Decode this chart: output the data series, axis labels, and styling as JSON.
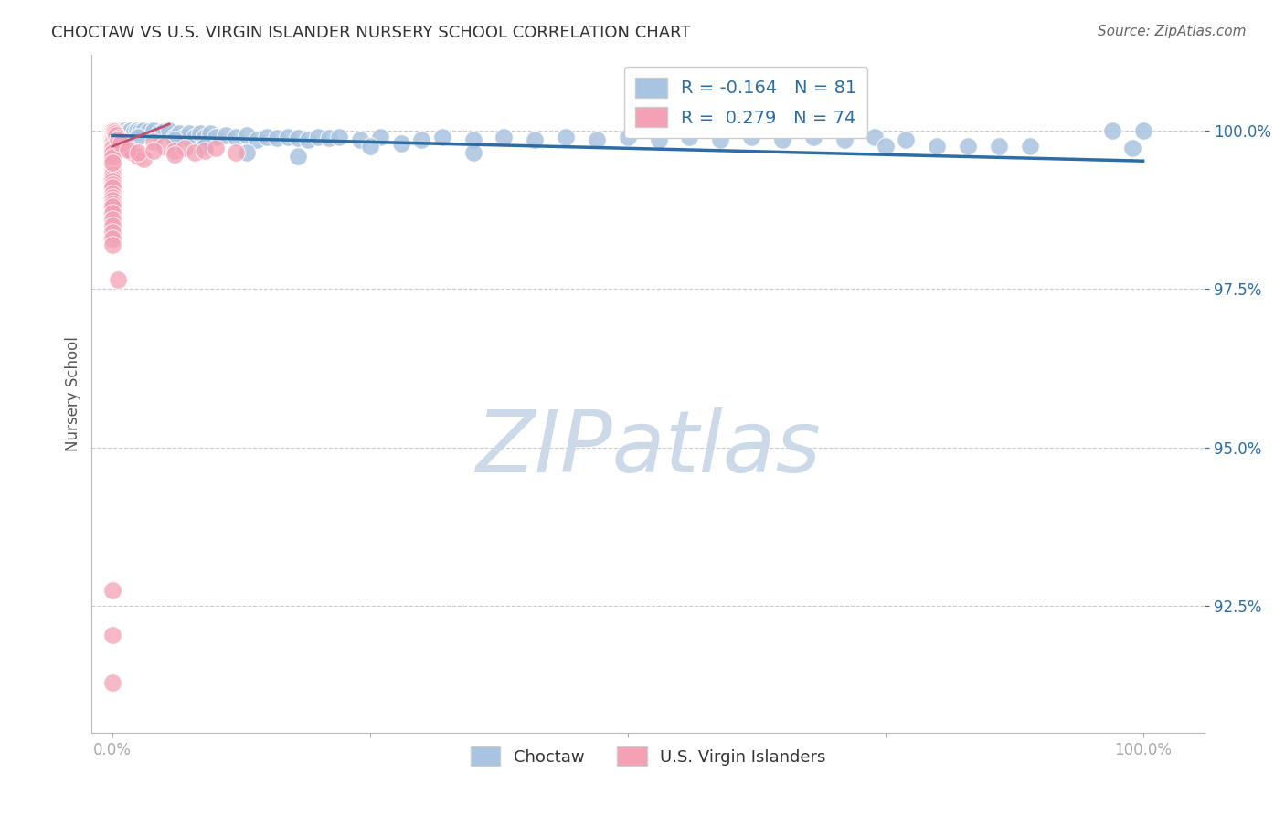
{
  "title": "CHOCTAW VS U.S. VIRGIN ISLANDER NURSERY SCHOOL CORRELATION CHART",
  "source": "Source: ZipAtlas.com",
  "ylabel": "Nursery School",
  "blue_color": "#a8c4e0",
  "pink_color": "#f4a0b5",
  "trend_color": "#2e6da4",
  "pink_trend_color": "#c05070",
  "watermark_text": "ZIPatlas",
  "watermark_color": "#ccd9e8",
  "ytick_vals": [
    0.925,
    0.95,
    0.975,
    1.0
  ],
  "ytick_labels": [
    "92.5%",
    "95.0%",
    "97.5%",
    "100.0%"
  ],
  "xtick_positions": [
    0.0,
    0.25,
    0.5,
    0.75,
    1.0
  ],
  "xtick_labels": [
    "0.0%",
    "",
    "",
    "",
    "100.0%"
  ],
  "xlim": [
    -0.02,
    1.06
  ],
  "ylim": [
    0.905,
    1.012
  ],
  "legend_R_N": "R = -0.164   N = 81\nR =  0.279   N = 74",
  "blue_trend_y0": 0.9992,
  "blue_trend_y1": 0.9952,
  "pink_trend_x0": 0.0,
  "pink_trend_x1": 0.055,
  "pink_trend_y0": 0.9975,
  "pink_trend_y1": 1.001,
  "blue_x": [
    0.003,
    0.006,
    0.009,
    0.012,
    0.015,
    0.018,
    0.021,
    0.024,
    0.027,
    0.03,
    0.035,
    0.04,
    0.045,
    0.05,
    0.055,
    0.06,
    0.065,
    0.07,
    0.075,
    0.08,
    0.085,
    0.09,
    0.095,
    0.1,
    0.11,
    0.12,
    0.13,
    0.14,
    0.15,
    0.16,
    0.17,
    0.18,
    0.19,
    0.2,
    0.21,
    0.22,
    0.24,
    0.26,
    0.28,
    0.3,
    0.32,
    0.35,
    0.38,
    0.41,
    0.44,
    0.47,
    0.5,
    0.53,
    0.56,
    0.59,
    0.62,
    0.65,
    0.68,
    0.71,
    0.74,
    0.77,
    0.8,
    0.83,
    0.86,
    0.89,
    0.0,
    0.0,
    0.0,
    0.0,
    0.0,
    0.0,
    0.0,
    0.0,
    0.0,
    0.0,
    0.025,
    0.06,
    0.09,
    0.13,
    0.18,
    0.25,
    0.35,
    0.75,
    0.97,
    0.99,
    1.0
  ],
  "blue_y": [
    1.0,
    1.0,
    0.9998,
    1.0,
    0.9998,
    1.0,
    0.9998,
    1.0,
    0.9998,
    1.0,
    0.9998,
    1.0,
    0.9995,
    0.9998,
    1.0,
    0.999,
    0.9995,
    0.999,
    0.9995,
    0.999,
    0.9995,
    0.999,
    0.9995,
    0.999,
    0.9993,
    0.999,
    0.9993,
    0.9985,
    0.999,
    0.9988,
    0.999,
    0.9988,
    0.9985,
    0.999,
    0.9988,
    0.999,
    0.9985,
    0.999,
    0.998,
    0.9985,
    0.999,
    0.9985,
    0.999,
    0.9985,
    0.999,
    0.9985,
    0.999,
    0.9985,
    0.999,
    0.9985,
    0.999,
    0.9985,
    0.999,
    0.9985,
    0.999,
    0.9985,
    0.9975,
    0.9975,
    0.9975,
    0.9975,
    0.9998,
    0.9995,
    0.9992,
    0.999,
    0.9987,
    0.9985,
    0.998,
    0.9975,
    0.997,
    0.996,
    0.999,
    0.9985,
    0.9975,
    0.9965,
    0.996,
    0.9975,
    0.9965,
    0.9975,
    1.0,
    0.9972,
    1.0
  ],
  "pink_x": [
    0.0,
    0.0,
    0.0,
    0.0,
    0.0,
    0.0,
    0.0,
    0.0,
    0.0,
    0.0,
    0.0,
    0.0,
    0.0,
    0.0,
    0.0,
    0.0,
    0.0,
    0.0,
    0.0,
    0.0,
    0.0,
    0.0,
    0.0,
    0.0,
    0.0,
    0.0,
    0.0,
    0.0,
    0.0,
    0.0,
    0.0,
    0.0,
    0.0,
    0.0,
    0.0,
    0.0,
    0.0,
    0.0,
    0.0,
    0.0,
    0.002,
    0.003,
    0.004,
    0.006,
    0.008,
    0.01,
    0.012,
    0.015,
    0.018,
    0.02,
    0.025,
    0.03,
    0.04,
    0.05,
    0.06,
    0.07,
    0.08,
    0.09,
    0.1,
    0.12,
    0.0,
    0.0,
    0.0,
    0.0,
    0.005,
    0.008,
    0.015,
    0.025,
    0.04,
    0.06,
    0.0,
    0.0,
    0.0,
    0.005
  ],
  "pink_y": [
    1.0,
    1.0,
    1.0,
    1.0,
    0.9998,
    0.9996,
    0.9994,
    0.9992,
    0.999,
    0.9988,
    0.9985,
    0.9982,
    0.998,
    0.9976,
    0.9972,
    0.997,
    0.9966,
    0.9962,
    0.996,
    0.9955,
    0.995,
    0.9945,
    0.994,
    0.9935,
    0.993,
    0.9925,
    0.992,
    0.9915,
    0.991,
    0.99,
    0.9895,
    0.989,
    0.9885,
    0.988,
    0.987,
    0.986,
    0.985,
    0.984,
    0.983,
    0.982,
    0.9998,
    0.9995,
    0.9992,
    0.9988,
    0.9984,
    0.998,
    0.9975,
    0.9972,
    0.9968,
    0.9965,
    0.996,
    0.9955,
    0.9982,
    0.9975,
    0.9968,
    0.9972,
    0.9965,
    0.9968,
    0.9972,
    0.9965,
    0.9972,
    0.9965,
    0.9958,
    0.995,
    0.9985,
    0.998,
    0.997,
    0.9965,
    0.9968,
    0.9962,
    0.9275,
    0.9205,
    0.913,
    0.9765
  ]
}
